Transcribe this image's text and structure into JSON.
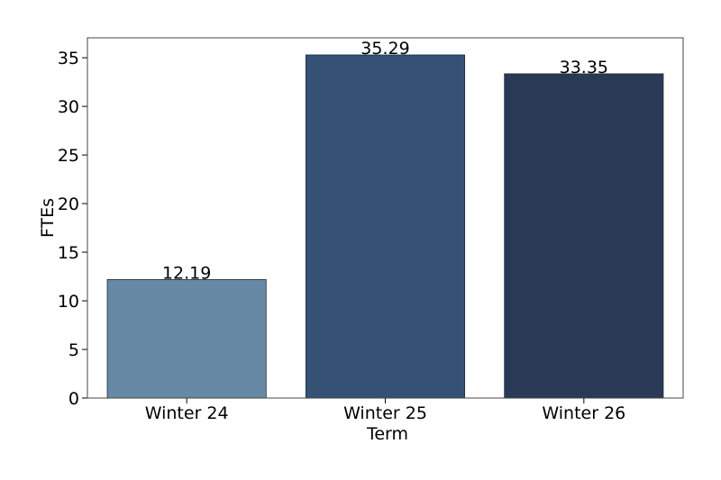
{
  "chart_data": {
    "type": "bar",
    "x_label": "Term",
    "y_label": "FTEs",
    "categories": [
      "Winter 24",
      "Winter 25",
      "Winter 26"
    ],
    "values": [
      12.19,
      35.29,
      33.35
    ],
    "colors": [
      "#6789a6",
      "#355276",
      "#283a55"
    ],
    "ylim": [
      0,
      37.05
    ],
    "yticks": [
      0,
      5,
      10,
      15,
      20,
      25,
      30,
      35
    ]
  }
}
